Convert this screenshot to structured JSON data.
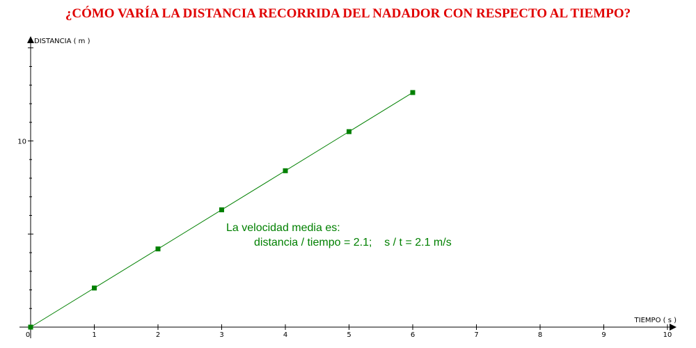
{
  "chart_data": {
    "type": "scatter",
    "title": "¿CÓMO VARÍA LA DISTANCIA RECORRIDA DEL NADADOR CON RESPECTO AL TIEMPO?",
    "xlabel": "TIEMPO ( s )",
    "ylabel": "DISTANCIA ( m )",
    "x_ticks": [
      "0",
      "1",
      "2",
      "3",
      "4",
      "5",
      "6",
      "7",
      "8",
      "9",
      "10"
    ],
    "y_ticks": [
      "10"
    ],
    "xlim": [
      0,
      10
    ],
    "ylim": [
      0,
      15.5
    ],
    "x": [
      0,
      1,
      2,
      3,
      4,
      5,
      6
    ],
    "y": [
      0,
      2.1,
      4.2,
      6.3,
      8.4,
      10.5,
      12.6
    ],
    "line_through_points": true,
    "grid": false,
    "series_color": "#008000",
    "annotation": {
      "line1": "La velocidad media es:",
      "line2": "distancia / tiempo = 2.1;    s / t = 2.1 m/s"
    }
  }
}
